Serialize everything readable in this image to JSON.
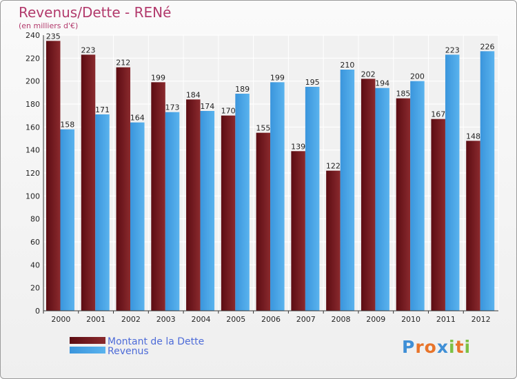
{
  "chart_data": {
    "type": "bar",
    "title": "Revenus/Dette - RENé",
    "subtitle": "(en milliers d'€)",
    "categories": [
      "2000",
      "2001",
      "2002",
      "2003",
      "2004",
      "2005",
      "2006",
      "2007",
      "2008",
      "2009",
      "2010",
      "2011",
      "2012"
    ],
    "series": [
      {
        "name": "Montant de la Dette",
        "color": "#7a1a1f",
        "values": [
          235,
          223,
          212,
          199,
          184,
          170,
          155,
          139,
          122,
          202,
          185,
          167,
          148
        ]
      },
      {
        "name": "Revenus",
        "color": "#3d9de0",
        "values": [
          158,
          171,
          164,
          173,
          174,
          189,
          199,
          195,
          210,
          194,
          200,
          223,
          226
        ]
      }
    ],
    "ylim": [
      0,
      240
    ],
    "yticks": [
      0,
      20,
      40,
      60,
      80,
      100,
      120,
      140,
      160,
      180,
      200,
      220,
      240
    ],
    "grid": true,
    "legend": "bottom-left"
  },
  "logo": {
    "letters": [
      "P",
      "r",
      "o",
      "x",
      "i",
      "t",
      "i"
    ],
    "colors": [
      "#3f8fd6",
      "#e8742a",
      "#e8742a",
      "#3f8fd6",
      "#7cc043",
      "#e8742a",
      "#7cc043"
    ]
  }
}
